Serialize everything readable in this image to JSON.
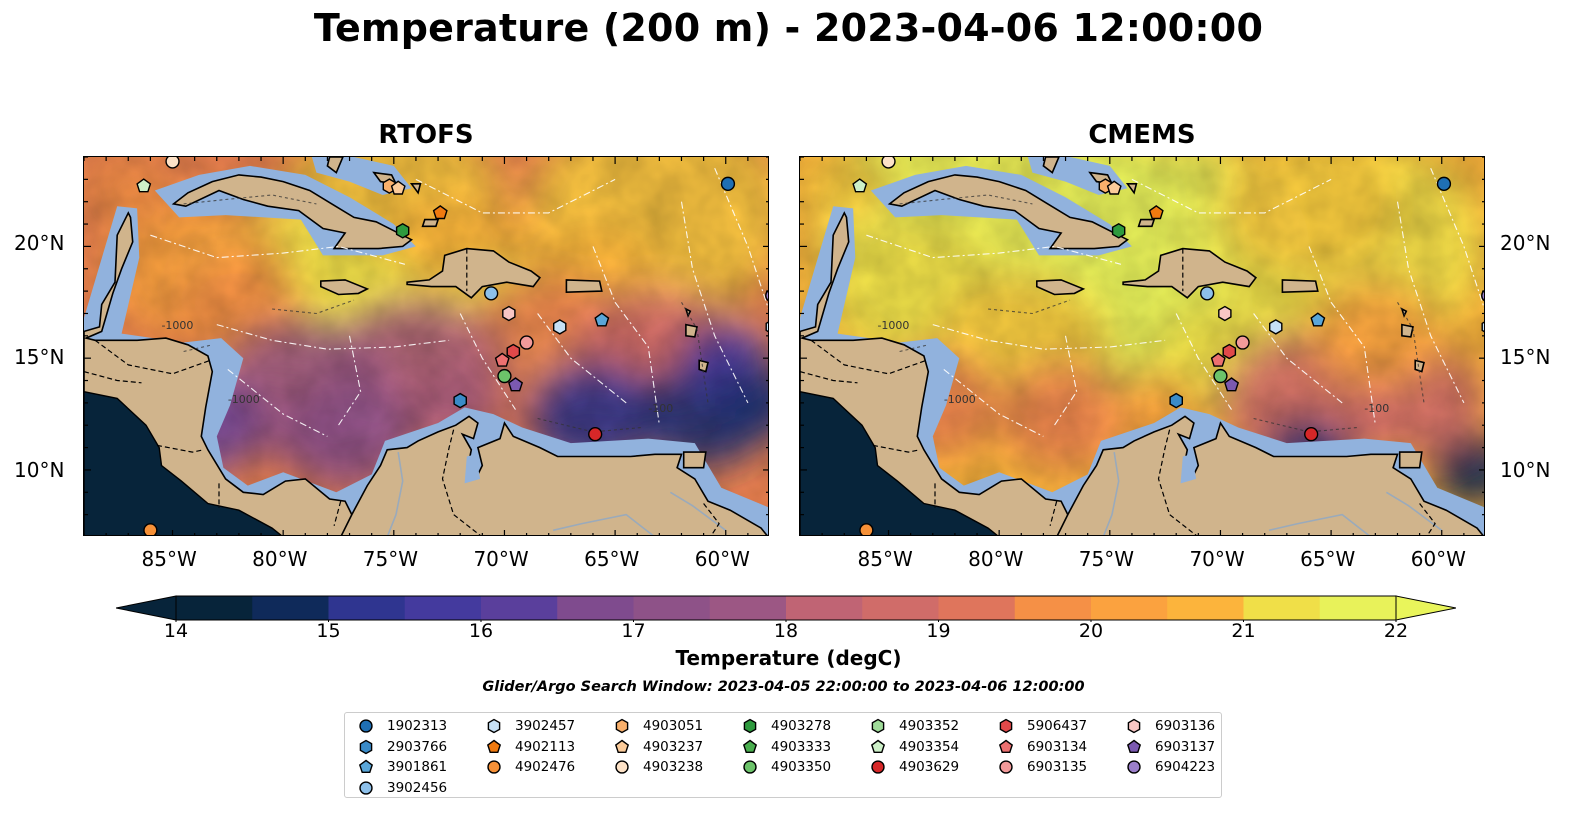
{
  "title": "Temperature (200 m) - 2023-04-06 12:00:00",
  "panels": [
    {
      "title": "RTOFS",
      "variant": "rtofs"
    },
    {
      "title": "CMEMS",
      "variant": "cmems"
    }
  ],
  "lon_ticks": [
    "85°W",
    "80°W",
    "75°W",
    "70°W",
    "65°W",
    "60°W"
  ],
  "lat_ticks": [
    "20°N",
    "15°N",
    "10°N"
  ],
  "colorbar": {
    "ticks": [
      "14",
      "15",
      "16",
      "17",
      "18",
      "19",
      "20",
      "21",
      "22"
    ],
    "label": "Temperature (degC)",
    "colors": [
      "#07243a",
      "#0f2a5a",
      "#1d3278",
      "#2f3590",
      "#443a9e",
      "#5a3f9c",
      "#6e4595",
      "#7f4b8e",
      "#8e5288",
      "#9c5784",
      "#ad5e7c",
      "#c06474",
      "#d06c69",
      "#df755c",
      "#ec8250",
      "#f59046",
      "#fba23f",
      "#fcb43c",
      "#f7c83e",
      "#f0df48",
      "#e8f25a"
    ],
    "extend_low_color": "#07243a",
    "extend_high_color": "#e9f55b"
  },
  "search_window": "Glider/Argo Search Window: 2023-04-05 22:00:00 to 2023-04-06 12:00:00",
  "map_colors": {
    "land": "#d0b48c",
    "shelf": "#91b2dd",
    "coast": "#000000",
    "rivers": "#9aaabb"
  },
  "legend": [
    {
      "id": "1902313",
      "marker": "circle",
      "color": "#1f6fb4"
    },
    {
      "id": "2903766",
      "marker": "hexagon",
      "color": "#3a8bc8"
    },
    {
      "id": "3901861",
      "marker": "pentagon",
      "color": "#5aa6d8"
    },
    {
      "id": "3902456",
      "marker": "circle",
      "color": "#8dc0ea"
    },
    {
      "id": "3902457",
      "marker": "hexagon",
      "color": "#c6e0f5"
    },
    {
      "id": "4902113",
      "marker": "pentagon",
      "color": "#f07a10"
    },
    {
      "id": "4902476",
      "marker": "circle",
      "color": "#f69138"
    },
    {
      "id": "4903051",
      "marker": "hexagon",
      "color": "#f9b06c"
    },
    {
      "id": "4903237",
      "marker": "pentagon",
      "color": "#fbcb9a"
    },
    {
      "id": "4903238",
      "marker": "circle",
      "color": "#fde2c7"
    },
    {
      "id": "4903278",
      "marker": "hexagon",
      "color": "#2e9a3e"
    },
    {
      "id": "4903333",
      "marker": "pentagon",
      "color": "#4aae4f"
    },
    {
      "id": "4903350",
      "marker": "circle",
      "color": "#6cc36a"
    },
    {
      "id": "4903352",
      "marker": "hexagon",
      "color": "#a0dc9a"
    },
    {
      "id": "4903354",
      "marker": "pentagon",
      "color": "#cdf0c8"
    },
    {
      "id": "4903629",
      "marker": "circle",
      "color": "#d62728"
    },
    {
      "id": "5906437",
      "marker": "hexagon",
      "color": "#e0494a"
    },
    {
      "id": "6903134",
      "marker": "pentagon",
      "color": "#ec7070"
    },
    {
      "id": "6903135",
      "marker": "circle",
      "color": "#f29a9a"
    },
    {
      "id": "6903136",
      "marker": "hexagon",
      "color": "#f8c6c4"
    },
    {
      "id": "6903137",
      "marker": "pentagon",
      "color": "#7b59b0"
    },
    {
      "id": "6904223",
      "marker": "circle",
      "color": "#9b7fca"
    }
  ],
  "floats": [
    {
      "id": "1902313",
      "lon": -59.9,
      "lat": 22.8
    },
    {
      "id": "2903766",
      "lon": -72.0,
      "lat": 13.1
    },
    {
      "id": "3901861",
      "lon": -65.6,
      "lat": 16.7
    },
    {
      "id": "3902456",
      "lon": -70.6,
      "lat": 17.9
    },
    {
      "id": "3902457",
      "lon": -67.5,
      "lat": 16.4
    },
    {
      "id": "3902457",
      "lon": -57.9,
      "lat": 16.4
    },
    {
      "id": "4902113",
      "lon": -72.9,
      "lat": 21.5
    },
    {
      "id": "4902476",
      "lon": -86.0,
      "lat": 7.3
    },
    {
      "id": "4903051",
      "lon": -75.2,
      "lat": 22.7
    },
    {
      "id": "4903237",
      "lon": -74.8,
      "lat": 22.6
    },
    {
      "id": "4903238",
      "lon": -85.0,
      "lat": 23.8
    },
    {
      "id": "4903278",
      "lon": -74.6,
      "lat": 20.7
    },
    {
      "id": "4903350",
      "lon": -70.0,
      "lat": 14.2
    },
    {
      "id": "4903354",
      "lon": -86.3,
      "lat": 22.7
    },
    {
      "id": "4903629",
      "lon": -65.9,
      "lat": 11.6
    },
    {
      "id": "5906437",
      "lon": -69.6,
      "lat": 15.3
    },
    {
      "id": "6903134",
      "lon": -70.1,
      "lat": 14.9
    },
    {
      "id": "6903135",
      "lon": -69.0,
      "lat": 15.7
    },
    {
      "id": "6903136",
      "lon": -69.8,
      "lat": 17.0
    },
    {
      "id": "6903137",
      "lon": -69.5,
      "lat": 13.8
    },
    {
      "id": "6904223",
      "lon": -57.9,
      "lat": 17.8
    }
  ],
  "extent": {
    "lon": [
      -89,
      -58
    ],
    "lat": [
      7,
      24
    ]
  },
  "contour_labels": [
    "-100",
    "-1000"
  ]
}
